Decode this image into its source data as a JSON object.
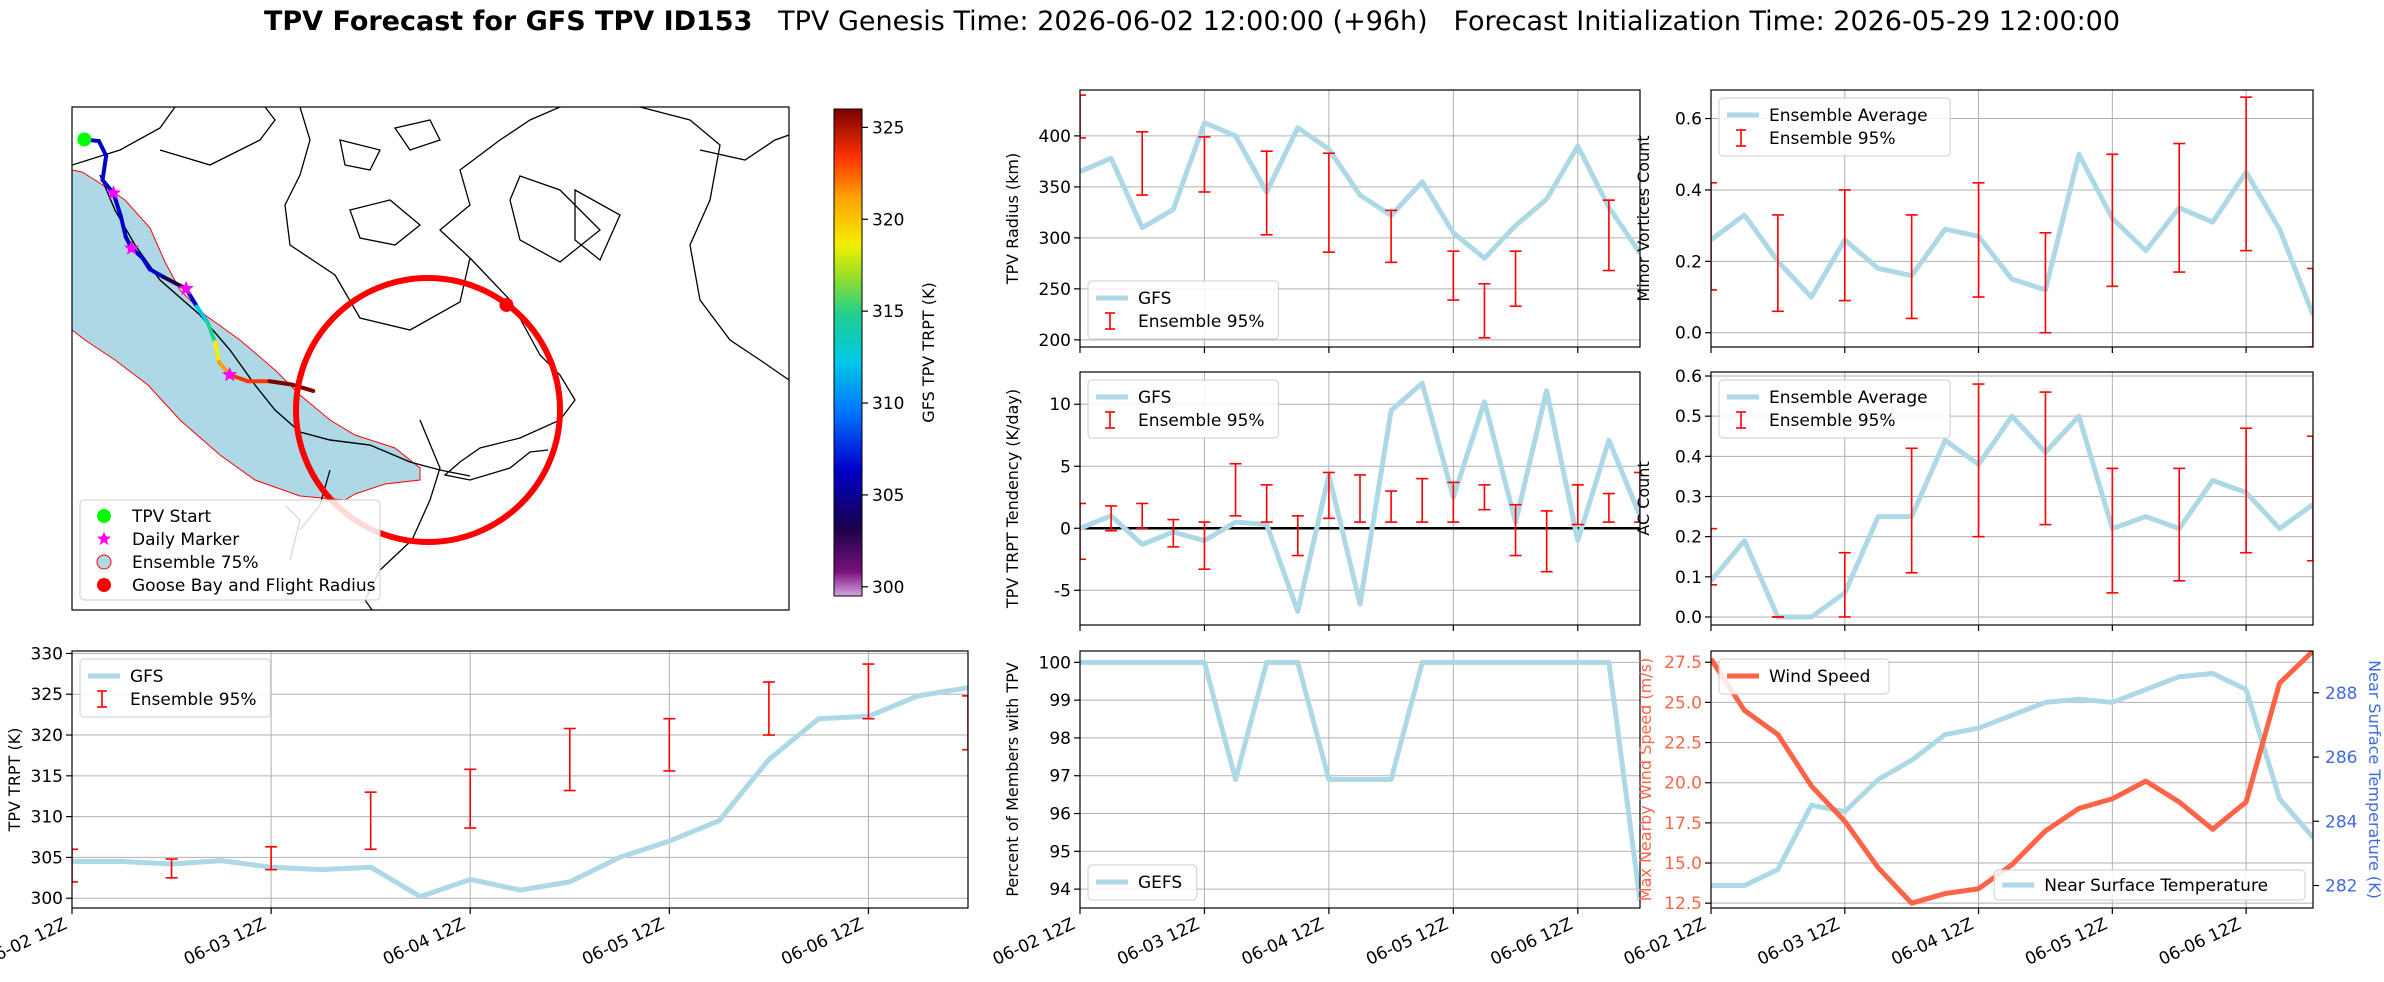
{
  "figure": {
    "title_bold": "TPV Forecast for GFS TPV ID153",
    "title_genesis": "TPV Genesis Time: 2026-06-02 12:00:00 (+96h)",
    "title_init": "Forecast Initialization Time: 2026-05-29 12:00:00"
  },
  "colors": {
    "gfs_line": "#add8e6",
    "error_bar": "#ff0000",
    "wind": "#ff6347",
    "temp_axis": "#4169e1",
    "swath": "#add8e6"
  },
  "x_ticks": [
    "06-02 12Z",
    "06-03 12Z",
    "06-04 12Z",
    "06-05 12Z",
    "06-06 12Z"
  ],
  "chart_data": [
    {
      "type": "map",
      "id": "track_map",
      "colorbar": {
        "label": "GFS TPV TRPT (K)",
        "ticks": [
          "325",
          "320",
          "315",
          "310",
          "305",
          "300"
        ],
        "range": [
          299.5,
          326
        ]
      },
      "legend": [
        "TPV Start",
        "Daily Marker",
        "Ensemble 75%",
        "Goose Bay and Flight Radius"
      ],
      "track": [
        {
          "lon": -118.5,
          "lat": 63.5,
          "t": 304.5
        },
        {
          "lon": -116.5,
          "lat": 63.4,
          "t": 304.3
        },
        {
          "lon": -115.5,
          "lat": 62.5,
          "t": 304.0
        },
        {
          "lon": -116.0,
          "lat": 61.0,
          "t": 304.0
        },
        {
          "lon": -114.5,
          "lat": 60.2,
          "t": 304.3
        },
        {
          "lon": -113.5,
          "lat": 58.8,
          "t": 304.0
        },
        {
          "lon": -112.8,
          "lat": 57.5,
          "t": 303.5
        },
        {
          "lon": -112.0,
          "lat": 56.8,
          "t": 303.8
        },
        {
          "lon": -110.5,
          "lat": 56.2,
          "t": 306.5
        },
        {
          "lon": -109.5,
          "lat": 55.5,
          "t": 305.0
        },
        {
          "lon": -107.5,
          "lat": 55.0,
          "t": 303.0
        },
        {
          "lon": -104.5,
          "lat": 54.3,
          "t": 302.0
        },
        {
          "lon": -103.0,
          "lat": 53.2,
          "t": 309.0
        },
        {
          "lon": -101.5,
          "lat": 52.2,
          "t": 313.0
        },
        {
          "lon": -100.5,
          "lat": 51.0,
          "t": 316.5
        },
        {
          "lon": -100.0,
          "lat": 49.8,
          "t": 318.5
        },
        {
          "lon": -98.5,
          "lat": 49.0,
          "t": 321.5
        },
        {
          "lon": -96.0,
          "lat": 48.6,
          "t": 322.0
        },
        {
          "lon": -93.0,
          "lat": 48.6,
          "t": 322.5
        },
        {
          "lon": -90.0,
          "lat": 48.4,
          "t": 324.5
        },
        {
          "lon": -87.0,
          "lat": 48.0,
          "t": 325.8
        }
      ],
      "daily_markers": [
        {
          "lon": -114.5,
          "lat": 60.2
        },
        {
          "lon": -112.0,
          "lat": 56.8
        },
        {
          "lon": -104.5,
          "lat": 54.3
        },
        {
          "lon": -98.5,
          "lat": 49.0
        }
      ],
      "start": {
        "lon": -118.5,
        "lat": 63.5
      },
      "goose_bay": {
        "lon": -60.4,
        "lat": 53.3
      }
    },
    {
      "type": "line",
      "id": "radius",
      "ylabel": "TPV Radius (km)",
      "ylim": [
        193,
        445
      ],
      "yticks": [
        200,
        250,
        300,
        350,
        400
      ],
      "legend": [
        "GFS",
        "Ensemble 95%"
      ],
      "legend_pos": "lower-left",
      "x": [
        0,
        0.25,
        0.5,
        0.75,
        1,
        1.25,
        1.5,
        1.75,
        2,
        2.25,
        2.5,
        2.75,
        3,
        3.25,
        3.5,
        3.75,
        4,
        4.25,
        4.5
      ],
      "values": [
        365,
        378,
        310,
        328,
        413,
        400,
        345,
        408,
        387,
        342,
        322,
        355,
        305,
        280,
        312,
        338,
        390,
        330,
        285
      ],
      "err": [
        [
          0,
          398,
          440
        ],
        [
          0.5,
          342,
          404
        ],
        [
          1,
          345,
          399
        ],
        [
          1.5,
          303,
          385
        ],
        [
          2,
          286,
          383
        ],
        [
          2.5,
          276,
          327
        ],
        [
          3,
          239,
          287
        ],
        [
          3.25,
          202,
          255
        ],
        [
          3.5,
          233,
          287
        ],
        [
          4.25,
          268,
          337
        ]
      ]
    },
    {
      "type": "line",
      "id": "minor_vortices",
      "ylabel": "Minor Vortices Count",
      "ylim": [
        -0.04,
        0.68
      ],
      "yticks": [
        0.0,
        0.2,
        0.4,
        0.6
      ],
      "legend": [
        "Ensemble Average",
        "Ensemble 95%"
      ],
      "legend_pos": "upper-left",
      "x": [
        0,
        0.25,
        0.5,
        0.75,
        1,
        1.25,
        1.5,
        1.75,
        2,
        2.25,
        2.5,
        2.75,
        3,
        3.25,
        3.5,
        3.75,
        4,
        4.25,
        4.5
      ],
      "values": [
        0.26,
        0.33,
        0.2,
        0.1,
        0.26,
        0.18,
        0.16,
        0.29,
        0.27,
        0.15,
        0.12,
        0.5,
        0.32,
        0.23,
        0.35,
        0.31,
        0.45,
        0.29,
        0.05
      ],
      "err": [
        [
          0,
          0.12,
          0.42
        ],
        [
          0.5,
          0.06,
          0.33
        ],
        [
          1,
          0.09,
          0.4
        ],
        [
          1.5,
          0.04,
          0.33
        ],
        [
          2,
          0.1,
          0.42
        ],
        [
          2.5,
          0.0,
          0.28
        ],
        [
          3,
          0.13,
          0.5
        ],
        [
          3.5,
          0.17,
          0.53
        ],
        [
          4,
          0.23,
          0.66
        ],
        [
          4.5,
          -0.04,
          0.18
        ]
      ]
    },
    {
      "type": "line",
      "id": "trpt_tendency",
      "ylabel": "TPV TRPT Tendency (K/day)",
      "ylim": [
        -7.8,
        12.6
      ],
      "yticks": [
        -5,
        0,
        5,
        10
      ],
      "legend": [
        "GFS",
        "Ensemble 95%"
      ],
      "legend_pos": "upper-left",
      "zero_line": true,
      "x": [
        0,
        0.25,
        0.5,
        0.75,
        1,
        1.25,
        1.5,
        1.75,
        2,
        2.25,
        2.5,
        2.75,
        3,
        3.25,
        3.5,
        3.75,
        4,
        4.25,
        4.5
      ],
      "values": [
        0,
        1,
        -1.3,
        -0.3,
        -1,
        0.5,
        0.3,
        -6.7,
        4.3,
        -6.1,
        9.5,
        11.7,
        2.5,
        10.2,
        0.5,
        11.1,
        -1,
        7.1,
        1
      ],
      "err": [
        [
          0,
          -2.5,
          2
        ],
        [
          0.25,
          -0.2,
          1.8
        ],
        [
          0.5,
          0,
          2
        ],
        [
          0.75,
          -1.5,
          0.7
        ],
        [
          1,
          -3.3,
          0.5
        ],
        [
          1.25,
          1,
          5.2
        ],
        [
          1.5,
          0.5,
          3.5
        ],
        [
          1.75,
          -2.2,
          1
        ],
        [
          2,
          0.8,
          4.5
        ],
        [
          2.25,
          0.5,
          4.3
        ],
        [
          2.5,
          0.5,
          3
        ],
        [
          2.75,
          0.5,
          4
        ],
        [
          3,
          0.5,
          3.7
        ],
        [
          3.25,
          1.5,
          3.5
        ],
        [
          3.5,
          -2.2,
          1.9
        ],
        [
          3.75,
          -3.5,
          1.4
        ],
        [
          4,
          0.3,
          3.5
        ],
        [
          4.25,
          0.5,
          2.8
        ],
        [
          4.5,
          0.5,
          4.5
        ]
      ]
    },
    {
      "type": "line",
      "id": "ac_count",
      "ylabel": "AC Count",
      "ylim": [
        -0.02,
        0.61
      ],
      "yticks": [
        0.0,
        0.1,
        0.2,
        0.3,
        0.4,
        0.5,
        0.6
      ],
      "legend": [
        "Ensemble Average",
        "Ensemble 95%"
      ],
      "legend_pos": "upper-left",
      "x": [
        0,
        0.25,
        0.5,
        0.75,
        1,
        1.25,
        1.5,
        1.75,
        2,
        2.25,
        2.5,
        2.75,
        3,
        3.25,
        3.5,
        3.75,
        4,
        4.25,
        4.5
      ],
      "values": [
        0.09,
        0.19,
        0.0,
        0.0,
        0.06,
        0.25,
        0.25,
        0.44,
        0.38,
        0.5,
        0.41,
        0.5,
        0.22,
        0.25,
        0.22,
        0.34,
        0.31,
        0.22,
        0.28
      ],
      "err": [
        [
          0,
          0.08,
          0.22
        ],
        [
          0.5,
          0.0,
          0.0
        ],
        [
          1,
          0.0,
          0.16
        ],
        [
          1.5,
          0.11,
          0.42
        ],
        [
          2,
          0.2,
          0.58
        ],
        [
          2.5,
          0.23,
          0.56
        ],
        [
          3,
          0.06,
          0.37
        ],
        [
          3.5,
          0.09,
          0.37
        ],
        [
          4,
          0.16,
          0.47
        ],
        [
          4.5,
          0.14,
          0.45
        ]
      ]
    },
    {
      "type": "line",
      "id": "trpt",
      "ylabel": "TPV TRPT (K)",
      "ylim": [
        298.8,
        330.3
      ],
      "yticks": [
        300,
        305,
        310,
        315,
        320,
        325,
        330
      ],
      "legend": [
        "GFS",
        "Ensemble 95%"
      ],
      "legend_pos": "upper-left",
      "x": [
        0,
        0.25,
        0.5,
        0.75,
        1,
        1.25,
        1.5,
        1.75,
        2,
        2.25,
        2.5,
        2.75,
        3,
        3.25,
        3.5,
        3.75,
        4,
        4.25,
        4.5
      ],
      "values": [
        304.5,
        304.5,
        304.2,
        304.6,
        303.8,
        303.5,
        303.8,
        300.2,
        302.3,
        301,
        302,
        305,
        307,
        309.5,
        317,
        322,
        322.3,
        324.8,
        325.8
      ],
      "err": [
        [
          0,
          302,
          306
        ],
        [
          0.5,
          302.5,
          304.8
        ],
        [
          1,
          303.5,
          306.3
        ],
        [
          1.5,
          306,
          313
        ],
        [
          2,
          308.6,
          315.8
        ],
        [
          2.5,
          313.2,
          320.8
        ],
        [
          3,
          315.6,
          322
        ],
        [
          3.5,
          320,
          326.5
        ],
        [
          4,
          322,
          328.7
        ],
        [
          4.5,
          318.2,
          324.8
        ]
      ]
    },
    {
      "type": "line",
      "id": "percent_members",
      "ylabel": "Percent of Members with TPV",
      "ylim": [
        93.5,
        100.3
      ],
      "yticks": [
        94,
        95,
        96,
        97,
        98,
        99,
        100
      ],
      "legend": [
        "GEFS"
      ],
      "legend_pos": "lower-left",
      "x": [
        0,
        0.25,
        0.5,
        0.75,
        1,
        1.25,
        1.5,
        1.75,
        2,
        2.25,
        2.5,
        2.75,
        3,
        3.25,
        3.5,
        3.75,
        4,
        4.25,
        4.5
      ],
      "values": [
        100,
        100,
        100,
        100,
        100,
        96.9,
        100,
        100,
        96.9,
        96.9,
        96.9,
        100,
        100,
        100,
        100,
        100,
        100,
        100,
        93.7
      ]
    },
    {
      "type": "line",
      "id": "wind_temp",
      "ylabel": "Max Nearby Wind Speed (m/s)",
      "ylabel2": "Near Surface Temperature (K)",
      "ylim": [
        12.2,
        28.2
      ],
      "yticks": [
        12.5,
        15.0,
        17.5,
        20.0,
        22.5,
        25.0,
        27.5
      ],
      "ylim2": [
        281.3,
        289.3
      ],
      "yticks2": [
        282,
        284,
        286,
        288
      ],
      "legend": [
        "Wind Speed"
      ],
      "legend2": [
        "Near Surface Temperature"
      ],
      "x": [
        0,
        0.25,
        0.5,
        0.75,
        1,
        1.25,
        1.5,
        1.75,
        2,
        2.25,
        2.5,
        2.75,
        3,
        3.25,
        3.5,
        3.75,
        4,
        4.25,
        4.5
      ],
      "series": [
        {
          "name": "Wind Speed",
          "values": [
            27.7,
            24.5,
            23,
            19.8,
            17.6,
            14.7,
            12.5,
            13.1,
            13.4,
            14.9,
            17,
            18.4,
            19,
            20.1,
            18.8,
            17.1,
            18.8,
            26.2,
            28.2
          ]
        },
        {
          "name": "Near Surface Temperature",
          "values": [
            282,
            282,
            282.5,
            284.5,
            284.3,
            285.3,
            285.9,
            286.7,
            286.9,
            287.3,
            287.7,
            287.8,
            287.7,
            288.1,
            288.5,
            288.6,
            288.1,
            284.7,
            283.5
          ]
        }
      ]
    }
  ]
}
